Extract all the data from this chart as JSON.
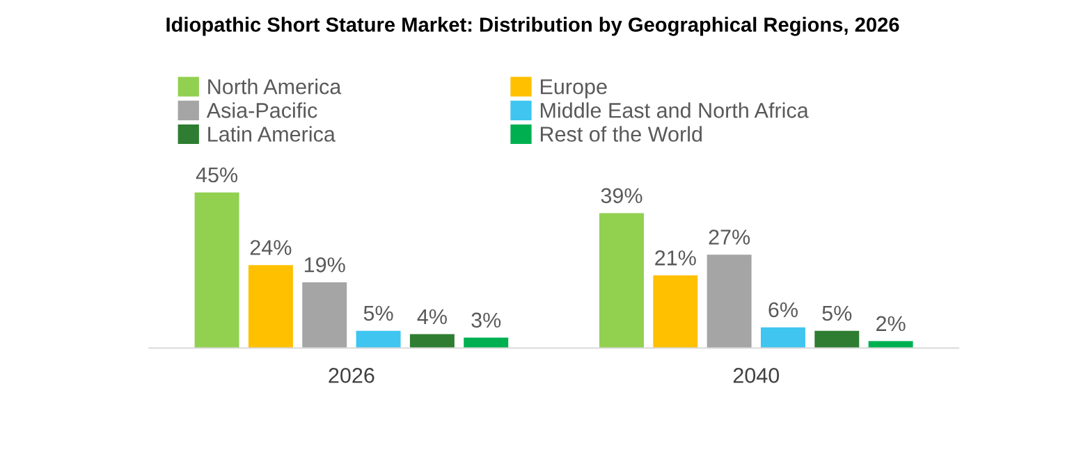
{
  "chart_data": {
    "type": "bar",
    "title": "Idiopathic Short Stature Market: Distribution by Geographical Regions, 2026",
    "categories": [
      "2026",
      "2040"
    ],
    "series": [
      {
        "name": "North America",
        "color": "#92d050",
        "values": [
          45,
          39
        ],
        "value_labels": [
          "45%",
          "39%"
        ]
      },
      {
        "name": "Europe",
        "color": "#ffc000",
        "values": [
          24,
          21
        ],
        "value_labels": [
          "24%",
          "21%"
        ]
      },
      {
        "name": "Asia-Pacific",
        "color": "#a5a5a5",
        "values": [
          19,
          27
        ],
        "value_labels": [
          "19%",
          "27%"
        ]
      },
      {
        "name": "Middle East and North Africa",
        "color": "#3fc5f0",
        "values": [
          5,
          6
        ],
        "value_labels": [
          "5%",
          "6%"
        ]
      },
      {
        "name": "Latin America",
        "color": "#2e7d32",
        "values": [
          4,
          5
        ],
        "value_labels": [
          "4%",
          "5%"
        ]
      },
      {
        "name": "Rest of the World",
        "color": "#00b050",
        "values": [
          3,
          2
        ],
        "value_labels": [
          "3%",
          "2%"
        ]
      }
    ],
    "legend": "top",
    "grid": false
  }
}
